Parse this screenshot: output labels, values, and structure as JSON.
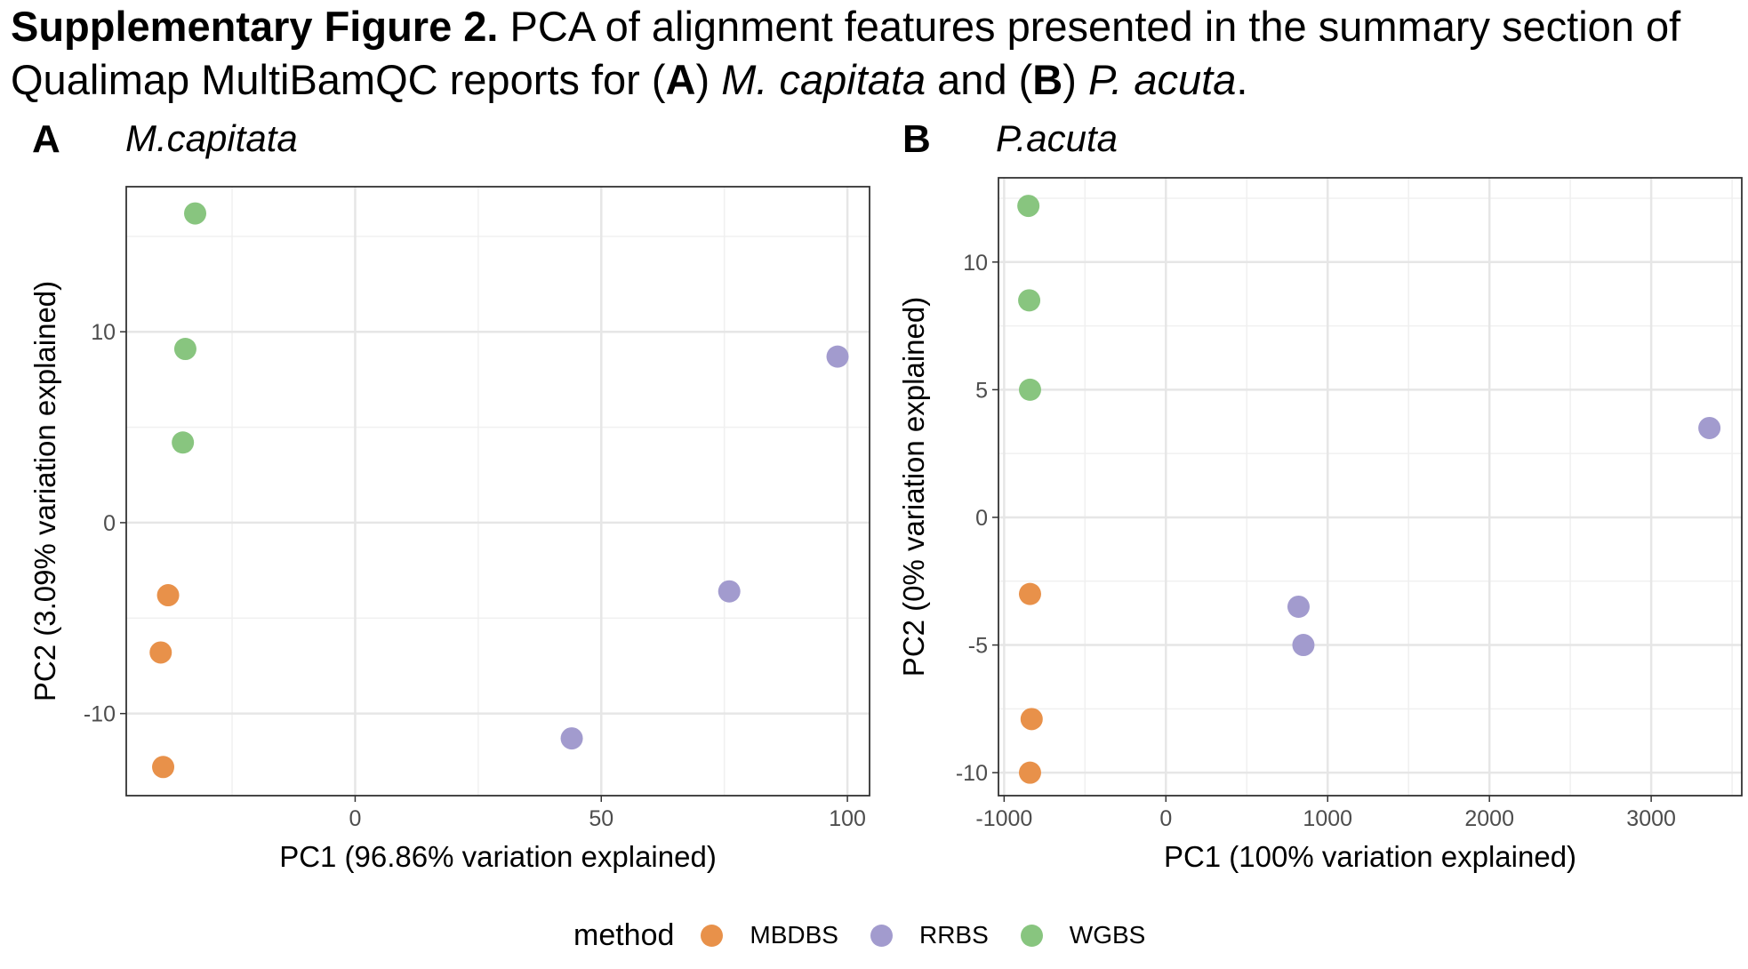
{
  "caption": {
    "bold": "Supplementary Figure 2.",
    "text1": " PCA of alignment features presented in the summary section of Qualimap MultiBamQC reports for (",
    "A": "A",
    "text2": ") ",
    "species_a": "M. capitata",
    "text3": " and (",
    "B": "B",
    "text4": ") ",
    "species_b": "P. acuta",
    "text5": "."
  },
  "colors": {
    "MBDBS": "#E8914A",
    "RRBS": "#A29BCE",
    "WGBS": "#88C57F"
  },
  "legend": {
    "title": "method",
    "items": [
      {
        "label": "MBDBS",
        "color": "#E8914A"
      },
      {
        "label": "RRBS",
        "color": "#A29BCE"
      },
      {
        "label": "WGBS",
        "color": "#88C57F"
      }
    ]
  },
  "chart_data": [
    {
      "type": "scatter",
      "panel": "A",
      "title": "M.capitata",
      "xlabel": "PC1 (96.86% variation explained)",
      "ylabel": "PC2 (3.09% variation explained)",
      "xlim": [
        -46.5,
        104.5
      ],
      "ylim": [
        -14.3,
        17.6
      ],
      "xticks": [
        0,
        50,
        100
      ],
      "yticks": [
        -10,
        0,
        10
      ],
      "xtick_labels": [
        "0",
        "50",
        "100"
      ],
      "ytick_labels": [
        "-10",
        "0",
        "10"
      ],
      "grid": true,
      "series": [
        {
          "name": "MBDBS",
          "points": [
            [
              -38,
              -3.8
            ],
            [
              -39.5,
              -6.8
            ],
            [
              -39,
              -12.8
            ]
          ]
        },
        {
          "name": "RRBS",
          "points": [
            [
              98,
              8.7
            ],
            [
              76,
              -3.6
            ],
            [
              44,
              -11.3
            ]
          ]
        },
        {
          "name": "WGBS",
          "points": [
            [
              -32.5,
              16.2
            ],
            [
              -34.5,
              9.1
            ],
            [
              -35,
              4.2
            ]
          ]
        }
      ]
    },
    {
      "type": "scatter",
      "panel": "B",
      "title": "P.acuta",
      "xlabel": "PC1 (100% variation explained)",
      "ylabel": "PC2 (0% variation explained)",
      "xlim": [
        -1035,
        3560
      ],
      "ylim": [
        -10.9,
        13.3
      ],
      "xticks": [
        -1000,
        0,
        1000,
        2000,
        3000
      ],
      "yticks": [
        -10,
        -5,
        0,
        5,
        10
      ],
      "xtick_labels": [
        "-1000",
        "0",
        "1000",
        "2000",
        "3000"
      ],
      "ytick_labels": [
        "-10",
        "-5",
        "0",
        "5",
        "10"
      ],
      "grid": true,
      "series": [
        {
          "name": "MBDBS",
          "points": [
            [
              -840,
              -3
            ],
            [
              -830,
              -7.9
            ],
            [
              -840,
              -10
            ]
          ]
        },
        {
          "name": "RRBS",
          "points": [
            [
              3360,
              3.5
            ],
            [
              820,
              -3.5
            ],
            [
              850,
              -5
            ]
          ]
        },
        {
          "name": "WGBS",
          "points": [
            [
              -850,
              12.2
            ],
            [
              -845,
              8.5
            ],
            [
              -840,
              5
            ]
          ]
        }
      ]
    }
  ]
}
